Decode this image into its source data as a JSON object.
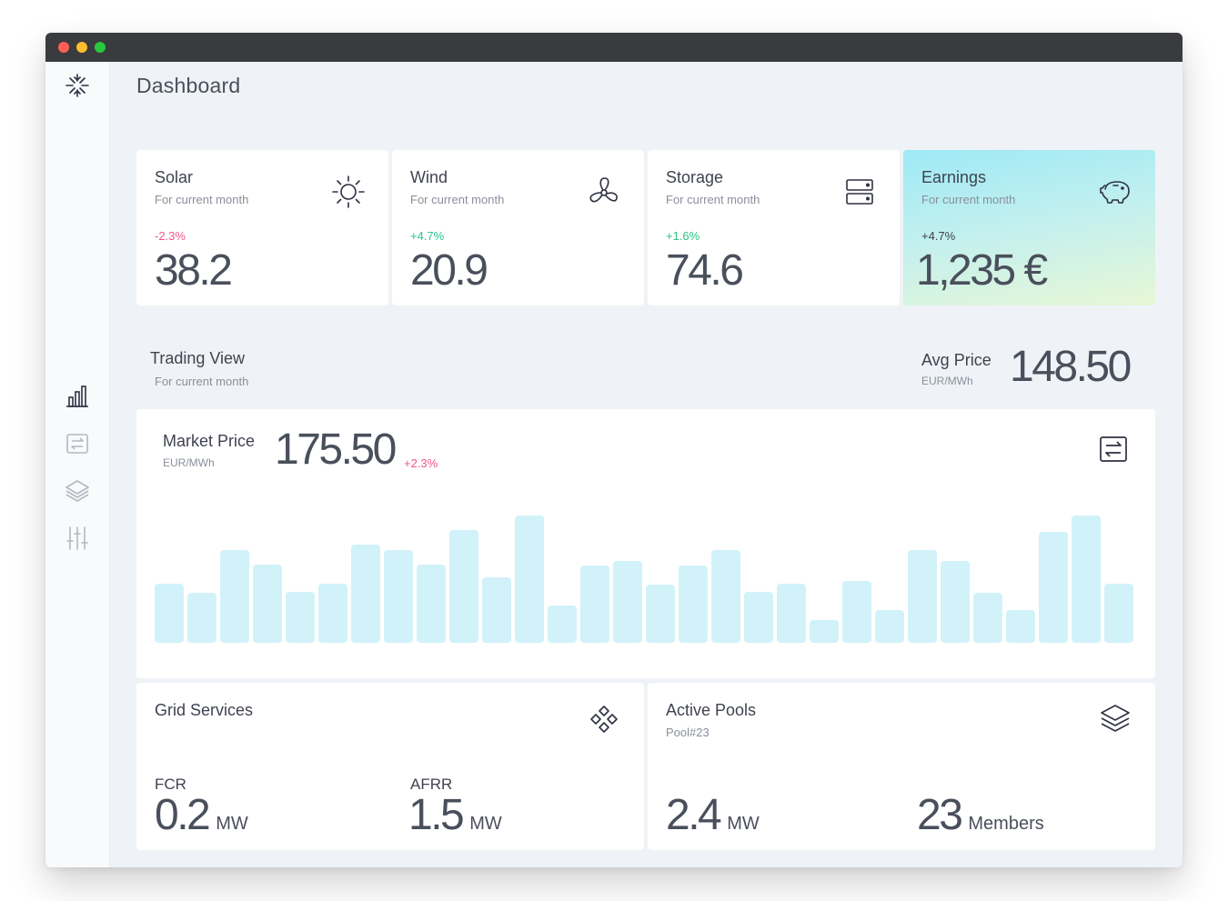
{
  "sidebar": {
    "logo_icon": "sparkle-logo-icon",
    "items": [
      {
        "name": "chart-icon",
        "active": true
      },
      {
        "name": "exchange-icon",
        "active": false
      },
      {
        "name": "layers-icon",
        "active": false
      },
      {
        "name": "sliders-icon",
        "active": false
      }
    ]
  },
  "header": {
    "title": "Dashboard"
  },
  "cards": [
    {
      "title": "Solar",
      "subtitle": "For current month",
      "delta": "-2.3%",
      "value": "38.2",
      "icon": "sun-icon"
    },
    {
      "title": "Wind",
      "subtitle": "For current month",
      "delta": "+4.7%",
      "value": "20.9",
      "icon": "fan-icon"
    },
    {
      "title": "Storage",
      "subtitle": "For current month",
      "delta": "+1.6%",
      "value": "74.6",
      "icon": "server-icon"
    },
    {
      "title": "Earnings",
      "subtitle": "For current month",
      "delta": "+4.7%",
      "value": "1,235 €",
      "icon": "piggy-bank-icon"
    }
  ],
  "trading": {
    "title": "Trading View",
    "subtitle": "For current month",
    "avg_label": "Avg Price",
    "avg_unit": "EUR/MWh",
    "avg_value": "148.50"
  },
  "market": {
    "label": "Market Price",
    "unit": "EUR/MWh",
    "value": "175.50",
    "delta": "+2.3%",
    "icon": "exchange-icon"
  },
  "chart_data": {
    "type": "bar",
    "values": [
      65,
      55,
      102,
      86,
      56,
      65,
      108,
      102,
      86,
      124,
      72,
      140,
      41,
      85,
      90,
      64,
      85,
      102,
      56,
      65,
      25,
      68,
      36,
      102,
      90,
      55,
      36,
      122,
      140,
      65
    ],
    "ylim": [
      0,
      150
    ],
    "color": "#d2f2fa",
    "grid": false
  },
  "grid_services": {
    "title": "Grid Services",
    "icon": "diamond-grid-icon",
    "metrics": [
      {
        "label": "FCR",
        "value": "0.2",
        "unit": "MW"
      },
      {
        "label": "AFRR",
        "value": "1.5",
        "unit": "MW"
      }
    ]
  },
  "active_pools": {
    "title": "Active Pools",
    "subtitle": "Pool#23",
    "icon": "layers-icon",
    "metrics": [
      {
        "value": "2.4",
        "unit": "MW"
      },
      {
        "value": "23",
        "unit": "Members"
      }
    ]
  },
  "colors": {
    "negative": "#f2558b",
    "positive": "#2bc48a",
    "bar": "#d2f2fa"
  }
}
